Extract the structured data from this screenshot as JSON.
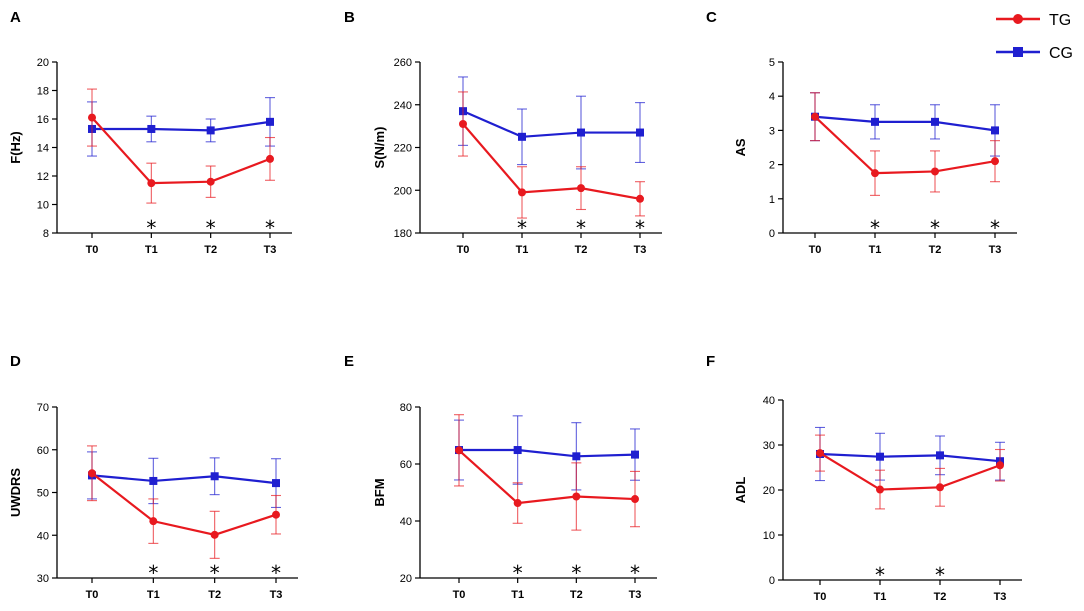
{
  "legend": {
    "entries": [
      {
        "name": "TG",
        "color": "#e8191f",
        "marker": "circle"
      },
      {
        "name": "CG",
        "color": "#1f1fd0",
        "marker": "square"
      }
    ]
  },
  "chart_data": [
    {
      "panel": "A",
      "type": "line",
      "ylabel": "F(Hz)",
      "categories": [
        "T0",
        "T1",
        "T2",
        "T3"
      ],
      "ylim": [
        8,
        20
      ],
      "yticks": [
        8,
        10,
        12,
        14,
        16,
        18,
        20
      ],
      "series": [
        {
          "name": "TG",
          "values": [
            16.1,
            11.5,
            11.6,
            13.2
          ],
          "err": [
            2.0,
            1.4,
            1.1,
            1.5
          ]
        },
        {
          "name": "CG",
          "values": [
            15.3,
            15.3,
            15.2,
            15.8
          ],
          "err": [
            1.9,
            0.9,
            0.8,
            1.7
          ]
        }
      ],
      "significance": [
        "",
        "*",
        "*",
        "*"
      ]
    },
    {
      "panel": "B",
      "type": "line",
      "ylabel": "S(N/m)",
      "categories": [
        "T0",
        "T1",
        "T2",
        "T3"
      ],
      "ylim": [
        180,
        260
      ],
      "yticks": [
        180,
        200,
        220,
        240,
        260
      ],
      "series": [
        {
          "name": "TG",
          "values": [
            231,
            199,
            201,
            196
          ],
          "err": [
            15,
            12,
            10,
            8
          ]
        },
        {
          "name": "CG",
          "values": [
            237,
            225,
            227,
            227
          ],
          "err": [
            16,
            13,
            17,
            14
          ]
        }
      ],
      "significance": [
        "",
        "*",
        "*",
        "*"
      ]
    },
    {
      "panel": "C",
      "type": "line",
      "ylabel": "AS",
      "categories": [
        "T0",
        "T1",
        "T2",
        "T3"
      ],
      "ylim": [
        0,
        5
      ],
      "yticks": [
        0,
        1,
        2,
        3,
        4,
        5
      ],
      "series": [
        {
          "name": "TG",
          "values": [
            3.4,
            1.75,
            1.8,
            2.1
          ],
          "err": [
            0.7,
            0.65,
            0.6,
            0.6
          ]
        },
        {
          "name": "CG",
          "values": [
            3.4,
            3.25,
            3.25,
            3.0
          ],
          "err": [
            0.7,
            0.5,
            0.5,
            0.75
          ]
        }
      ],
      "significance": [
        "",
        "*",
        "*",
        "*"
      ]
    },
    {
      "panel": "D",
      "type": "line",
      "ylabel": "UWDRS",
      "categories": [
        "T0",
        "T1",
        "T2",
        "T3"
      ],
      "ylim": [
        30,
        70
      ],
      "yticks": [
        30,
        40,
        50,
        60,
        70
      ],
      "series": [
        {
          "name": "TG",
          "values": [
            54.5,
            43.3,
            40.1,
            44.8
          ],
          "err": [
            6.4,
            5.2,
            5.5,
            4.5
          ]
        },
        {
          "name": "CG",
          "values": [
            54.0,
            52.7,
            53.8,
            52.2
          ],
          "err": [
            5.5,
            5.3,
            4.3,
            5.7
          ]
        }
      ],
      "significance": [
        "",
        "*",
        "*",
        "*"
      ]
    },
    {
      "panel": "E",
      "type": "line",
      "ylabel": "BFM",
      "categories": [
        "T0",
        "T1",
        "T2",
        "T3"
      ],
      "ylim": [
        20,
        80
      ],
      "yticks": [
        20,
        40,
        60,
        80
      ],
      "series": [
        {
          "name": "TG",
          "values": [
            64.8,
            46.3,
            48.6,
            47.7
          ],
          "err": [
            12.5,
            7.1,
            11.8,
            9.7
          ]
        },
        {
          "name": "CG",
          "values": [
            64.9,
            64.9,
            62.7,
            63.3
          ],
          "err": [
            10.5,
            12.0,
            11.8,
            9.0
          ]
        }
      ],
      "significance": [
        "",
        "*",
        "*",
        "*"
      ]
    },
    {
      "panel": "F",
      "type": "line",
      "ylabel": "ADL",
      "categories": [
        "T0",
        "T1",
        "T2",
        "T3"
      ],
      "ylim": [
        0,
        40
      ],
      "yticks": [
        0,
        10,
        20,
        30,
        40
      ],
      "series": [
        {
          "name": "TG",
          "values": [
            28.2,
            20.1,
            20.6,
            25.5
          ],
          "err": [
            4.0,
            4.3,
            4.2,
            3.5
          ]
        },
        {
          "name": "CG",
          "values": [
            28.0,
            27.4,
            27.7,
            26.4
          ],
          "err": [
            5.9,
            5.2,
            4.3,
            4.2
          ]
        }
      ],
      "significance": [
        "",
        "*",
        "*",
        ""
      ]
    }
  ]
}
